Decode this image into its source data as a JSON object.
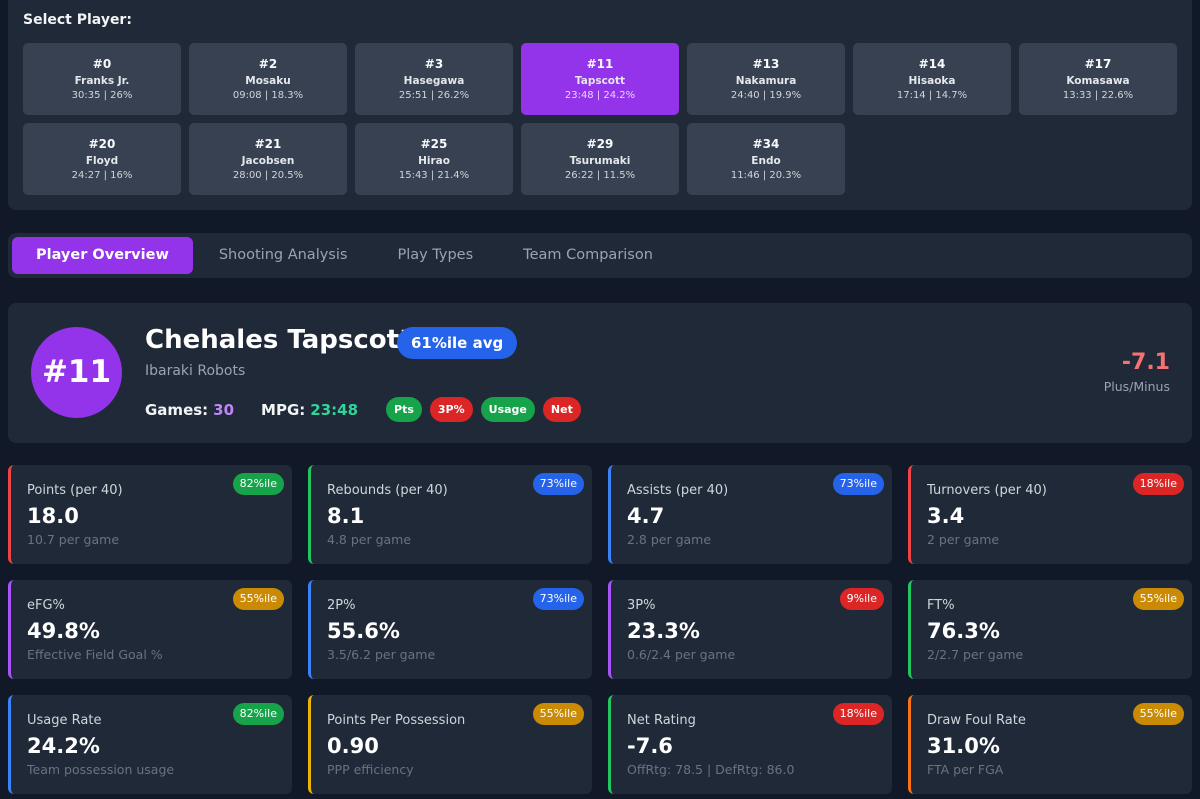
{
  "selector": {
    "title": "Select Player:",
    "players": [
      {
        "num": "#0",
        "name": "Franks Jr.",
        "stat": "30:35 | 26%"
      },
      {
        "num": "#2",
        "name": "Mosaku",
        "stat": "09:08 | 18.3%"
      },
      {
        "num": "#3",
        "name": "Hasegawa",
        "stat": "25:51 | 26.2%"
      },
      {
        "num": "#11",
        "name": "Tapscott",
        "stat": "23:48 | 24.2%",
        "active": true
      },
      {
        "num": "#13",
        "name": "Nakamura",
        "stat": "24:40 | 19.9%"
      },
      {
        "num": "#14",
        "name": "Hisaoka",
        "stat": "17:14 | 14.7%"
      },
      {
        "num": "#17",
        "name": "Komasawa",
        "stat": "13:33 | 22.6%"
      },
      {
        "num": "#20",
        "name": "Floyd",
        "stat": "24:27 | 16%"
      },
      {
        "num": "#21",
        "name": "Jacobsen",
        "stat": "28:00 | 20.5%"
      },
      {
        "num": "#25",
        "name": "Hirao",
        "stat": "15:43 | 21.4%"
      },
      {
        "num": "#29",
        "name": "Tsurumaki",
        "stat": "26:22 | 11.5%"
      },
      {
        "num": "#34",
        "name": "Endo",
        "stat": "11:46 | 20.3%"
      }
    ]
  },
  "tabs": [
    {
      "label": "Player Overview",
      "active": true
    },
    {
      "label": "Shooting Analysis"
    },
    {
      "label": "Play Types"
    },
    {
      "label": "Team Comparison"
    }
  ],
  "player": {
    "avatar": "#11",
    "name": "Chehales Tapscott",
    "percentile": "61%ile avg",
    "team": "Ibaraki Robots",
    "games_label": "Games:",
    "games": "30",
    "mpg_label": "MPG:",
    "mpg": "23:48",
    "pills": [
      {
        "label": "Pts",
        "color": "#16a34a"
      },
      {
        "label": "3P%",
        "color": "#dc2626"
      },
      {
        "label": "Usage",
        "color": "#16a34a"
      },
      {
        "label": "Net",
        "color": "#dc2626"
      }
    ],
    "plus_minus": "-7.1",
    "plus_minus_label": "Plus/Minus"
  },
  "colors": {
    "green": "#16a34a",
    "blue": "#2563eb",
    "yellow": "#ca8a04",
    "red": "#dc2626",
    "purple": "#a855f7",
    "orange": "#f97316",
    "accent": "#9333ea"
  },
  "cards": [
    {
      "label": "Points (per 40)",
      "value": "18.0",
      "sub": "10.7 per game",
      "badge": "82%ile",
      "badge_color": "#16a34a",
      "border": "#ef4444"
    },
    {
      "label": "Rebounds (per 40)",
      "value": "8.1",
      "sub": "4.8 per game",
      "badge": "73%ile",
      "badge_color": "#2563eb",
      "border": "#22c55e"
    },
    {
      "label": "Assists (per 40)",
      "value": "4.7",
      "sub": "2.8 per game",
      "badge": "73%ile",
      "badge_color": "#2563eb",
      "border": "#3b82f6"
    },
    {
      "label": "Turnovers (per 40)",
      "value": "3.4",
      "sub": "2 per game",
      "badge": "18%ile",
      "badge_color": "#dc2626",
      "border": "#ef4444"
    },
    {
      "label": "eFG%",
      "value": "49.8%",
      "sub": "Effective Field Goal %",
      "badge": "55%ile",
      "badge_color": "#ca8a04",
      "border": "#a855f7"
    },
    {
      "label": "2P%",
      "value": "55.6%",
      "sub": "3.5/6.2 per game",
      "badge": "73%ile",
      "badge_color": "#2563eb",
      "border": "#3b82f6"
    },
    {
      "label": "3P%",
      "value": "23.3%",
      "sub": "0.6/2.4 per game",
      "badge": "9%ile",
      "badge_color": "#dc2626",
      "border": "#a855f7"
    },
    {
      "label": "FT%",
      "value": "76.3%",
      "sub": "2/2.7 per game",
      "badge": "55%ile",
      "badge_color": "#ca8a04",
      "border": "#22c55e"
    },
    {
      "label": "Usage Rate",
      "value": "24.2%",
      "sub": "Team possession usage",
      "badge": "82%ile",
      "badge_color": "#16a34a",
      "border": "#3b82f6"
    },
    {
      "label": "Points Per Possession",
      "value": "0.90",
      "sub": "PPP efficiency",
      "badge": "55%ile",
      "badge_color": "#ca8a04",
      "border": "#eab308"
    },
    {
      "label": "Net Rating",
      "value": "-7.6",
      "sub": "OffRtg: 78.5 | DefRtg: 86.0",
      "badge": "18%ile",
      "badge_color": "#dc2626",
      "border": "#22c55e"
    },
    {
      "label": "Draw Foul Rate",
      "value": "31.0%",
      "sub": "FTA per FGA",
      "badge": "55%ile",
      "badge_color": "#ca8a04",
      "border": "#f97316"
    }
  ]
}
